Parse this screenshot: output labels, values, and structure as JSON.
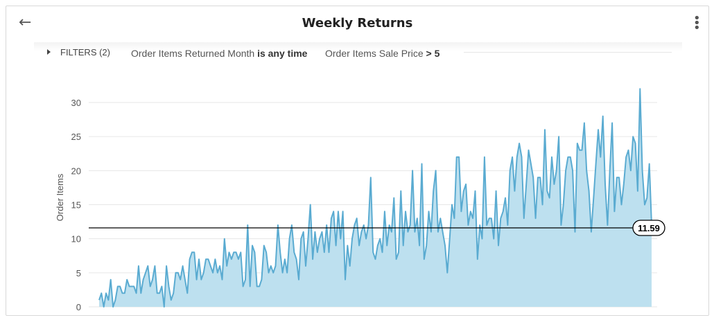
{
  "header": {
    "title": "Weekly Returns",
    "back_icon": "arrow-left-icon",
    "menu_icon": "kebab-menu-icon"
  },
  "filters": {
    "toggle_label": "FILTERS (2)",
    "items": [
      {
        "field": "Order Items Returned Month",
        "condition": "is any time"
      },
      {
        "field": "Order Items Sale Price",
        "condition": "> 5"
      }
    ]
  },
  "colors": {
    "line": "#5aabd1",
    "area": "#bde0ef",
    "reference": "#000000",
    "grid": "#e6e6e6"
  },
  "chart_data": {
    "type": "area",
    "title": "",
    "xlabel": "",
    "ylabel": "Order Items",
    "ylim": [
      0,
      32
    ],
    "yticks": [
      "0",
      "5",
      "10",
      "15",
      "20",
      "25",
      "30"
    ],
    "grid": true,
    "reference_line": {
      "value": 11.59,
      "label": "11.59"
    },
    "values": [
      1,
      2,
      0,
      2,
      1,
      4,
      0,
      1,
      3,
      3,
      2,
      2,
      4,
      3,
      3,
      3,
      2,
      6,
      2,
      4,
      5,
      6,
      3,
      4,
      6,
      2,
      2,
      3,
      0,
      6,
      3,
      1,
      2,
      5,
      5,
      4,
      6,
      4,
      2,
      7,
      8,
      8,
      4,
      7,
      4,
      5,
      7,
      7,
      6,
      5,
      7,
      5,
      6,
      4,
      10,
      6,
      8,
      7,
      8,
      8,
      7,
      8,
      3,
      4,
      12,
      3,
      9,
      8,
      3,
      3,
      4,
      9,
      8,
      5,
      6,
      5,
      6,
      12,
      8,
      5,
      7,
      5,
      10,
      12,
      8,
      7,
      4,
      10,
      11,
      6,
      10,
      15,
      7,
      11,
      8,
      10,
      11,
      8,
      12,
      8,
      13,
      14,
      9,
      14,
      10,
      14,
      4,
      9,
      6,
      10,
      12,
      13,
      9,
      11,
      12,
      10,
      12,
      19,
      8,
      7,
      9,
      10,
      8,
      14,
      9,
      12,
      11,
      16,
      7,
      8,
      17,
      9,
      14,
      11,
      12,
      20,
      11,
      13,
      9,
      21,
      7,
      9,
      14,
      11,
      17,
      20,
      11,
      13,
      11,
      9,
      5,
      10,
      15,
      13,
      22,
      22,
      14,
      17,
      18,
      12,
      14,
      13,
      17,
      7,
      12,
      10,
      22,
      12,
      13,
      13,
      10,
      17,
      9,
      13,
      14,
      16,
      12,
      20,
      22,
      17,
      22,
      24,
      22,
      13,
      18,
      23,
      21,
      19,
      13,
      19,
      19,
      15,
      26,
      17,
      16,
      22,
      18,
      20,
      25,
      12,
      15,
      20,
      22,
      22,
      20,
      11,
      24,
      23,
      23,
      27,
      20,
      17,
      11,
      16,
      21,
      26,
      22,
      28,
      18,
      12,
      20,
      27,
      14,
      19,
      19,
      15,
      18,
      22,
      23,
      20,
      25,
      24,
      17,
      32,
      20,
      15,
      16,
      21,
      12
    ]
  }
}
